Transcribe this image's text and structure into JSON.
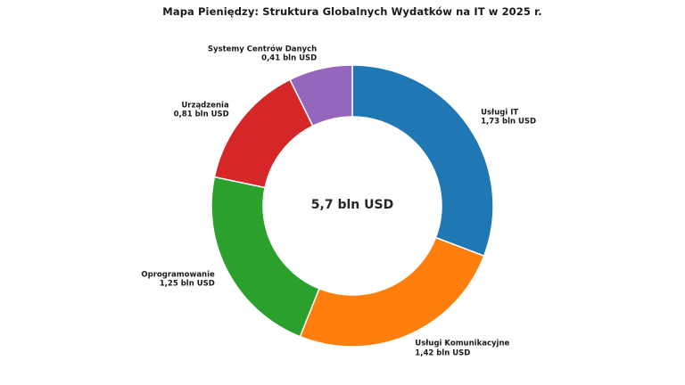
{
  "title": "Mapa Pieniędzy: Struktura Globalnych Wydatków na IT w 2025 r.",
  "chart_data": {
    "type": "pie",
    "subtype": "donut",
    "title": "Mapa Pieniędzy: Struktura Globalnych Wydatków na IT w 2025 r.",
    "start_angle": "12 o'clock",
    "direction": "clockwise",
    "legend": "none",
    "unit": "bln USD",
    "categories": [
      "Usługi IT",
      "Usługi Komunikacyjne",
      "Oprogramowanie",
      "Urządzenia",
      "Systemy Centrów Danych"
    ],
    "values": [
      1.73,
      1.42,
      1.25,
      0.81,
      0.41
    ],
    "value_labels": [
      "1,73 bln USD",
      "1,42 bln USD",
      "1,25 bln USD",
      "0,81 bln USD",
      "0,41 bln USD"
    ],
    "colors": [
      "#1f77b4",
      "#ff7f0e",
      "#2ca02c",
      "#d62728",
      "#9467bd"
    ],
    "total_label": "5,7 bln USD",
    "background_color": "#ffffff",
    "wedge_edge_color": "#ffffff"
  }
}
